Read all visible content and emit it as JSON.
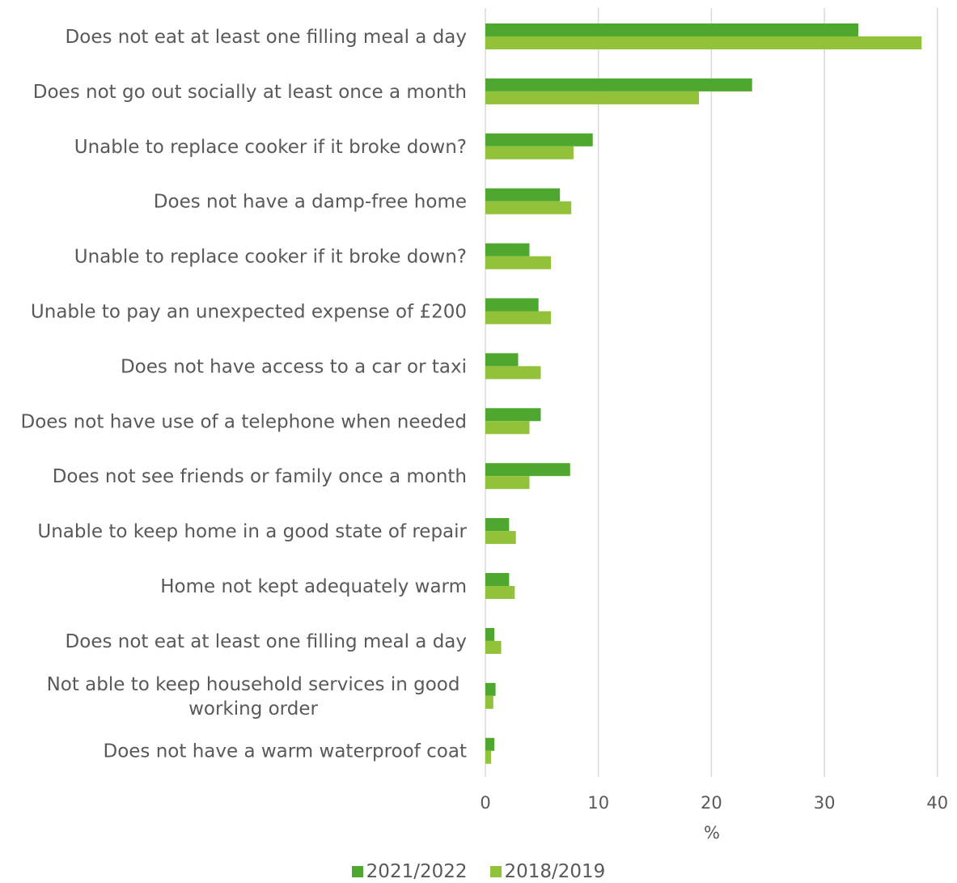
{
  "chart_data": {
    "type": "bar",
    "orientation": "horizontal",
    "categories": [
      "Does not eat at least one filling meal a day",
      "Does not go out socially at least once a month",
      "Unable to replace cooker if it broke down?",
      "Does not have a damp-free home",
      "Unable to replace cooker if it broke down?",
      "Unable to pay an unexpected expense of £200",
      "Does not have access to a car or taxi",
      "Does not have use of a telephone when needed",
      "Does not see friends or family once a month",
      "Unable to keep home in a good state of repair",
      "Home not kept adequately warm",
      "Does not eat at least one filling meal a day",
      "Not able to keep household services in good working order",
      "Does not have a warm waterproof coat"
    ],
    "series": [
      {
        "name": "2021/2022",
        "color": "#4ea72e",
        "values": [
          33.0,
          23.6,
          9.5,
          6.6,
          3.9,
          4.7,
          2.9,
          4.9,
          7.5,
          2.1,
          2.1,
          0.8,
          0.9,
          0.8
        ]
      },
      {
        "name": "2018/2019",
        "color": "#92c13a",
        "values": [
          38.6,
          18.9,
          7.8,
          7.6,
          5.8,
          5.8,
          4.9,
          3.9,
          3.9,
          2.7,
          2.6,
          1.4,
          0.7,
          0.5
        ]
      }
    ],
    "xlabel": "%",
    "xlim": [
      0,
      40
    ],
    "xticks": [
      0,
      10,
      20,
      30,
      40
    ],
    "grid": "vertical",
    "legend_position": "bottom"
  }
}
